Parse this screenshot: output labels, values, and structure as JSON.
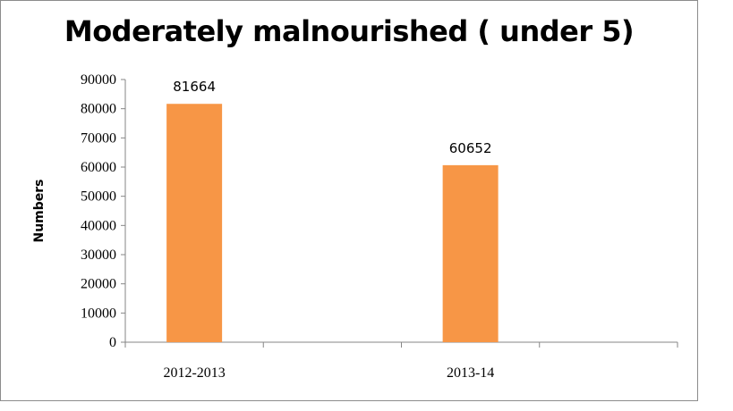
{
  "chart_data": {
    "type": "bar",
    "title": "Moderately malnourished ( under 5)",
    "xlabel": "",
    "ylabel": "Numbers",
    "categories": [
      "2012-2013",
      "2013-14"
    ],
    "values": [
      81664,
      60652
    ],
    "data_labels": [
      "81664",
      "60652"
    ],
    "ylim": [
      0,
      90000
    ],
    "yticks": [
      0,
      10000,
      20000,
      30000,
      40000,
      50000,
      60000,
      70000,
      80000,
      90000
    ],
    "ytick_labels": [
      "0",
      "10000",
      "20000",
      "30000",
      "40000",
      "50000",
      "60000",
      "70000",
      "80000",
      "90000"
    ],
    "grid": false,
    "legend": "none",
    "bar_color": "#f79646"
  }
}
